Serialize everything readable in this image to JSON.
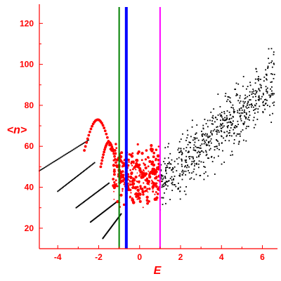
{
  "chart_data": {
    "type": "scatter",
    "title": "",
    "xlabel": "E",
    "ylabel": "<n>",
    "xlim": [
      -4.9,
      6.6
    ],
    "ylim": [
      10,
      128
    ],
    "xticks": [
      -4,
      -2,
      0,
      2,
      4,
      6
    ],
    "yticks": [
      20,
      40,
      60,
      80,
      100,
      120
    ],
    "xtick_labels": [
      "-4",
      "-2",
      "0",
      "2",
      "4",
      "6"
    ],
    "ytick_labels": [
      "20",
      "40",
      "60",
      "80",
      "100",
      "120"
    ],
    "grid": false,
    "axis_color": "#ff0000",
    "vertical_lines": [
      {
        "x": -1.0,
        "color": "#008000"
      },
      {
        "x": -0.65,
        "color": "#0000ff"
      },
      {
        "x": 1.0,
        "color": "#ff00ff"
      }
    ],
    "series": [
      {
        "color": "#000000",
        "marker": "small-dot",
        "ranges": [
          {
            "x": [
              -4.9,
              -2.5
            ],
            "y": [
              48,
              63
            ]
          },
          {
            "x": [
              -4.0,
              -2.2
            ],
            "y": [
              38,
              52
            ]
          },
          {
            "x": [
              -3.1,
              -1.5
            ],
            "y": [
              30,
              42
            ]
          },
          {
            "x": [
              -2.4,
              -1.1
            ],
            "y": [
              23,
              33
            ]
          },
          {
            "x": [
              -1.8,
              -0.9
            ],
            "y": [
              15,
              27
            ]
          }
        ],
        "cloud": {
          "x_range": [
            1.0,
            6.6
          ],
          "y_center_at_x1": 42,
          "slope": 9.0,
          "spread": 9
        }
      },
      {
        "color": "#ff0000",
        "marker": "round",
        "arcs": [
          {
            "x": [
              -2.7,
              -1.2
            ],
            "y_range": [
              58,
              73
            ]
          },
          {
            "x": [
              -1.9,
              -1.0
            ],
            "y_range": [
              50,
              62
            ]
          }
        ],
        "cloud": {
          "x_range": [
            -1.3,
            1.0
          ],
          "y_range": [
            28,
            64
          ]
        }
      }
    ]
  }
}
